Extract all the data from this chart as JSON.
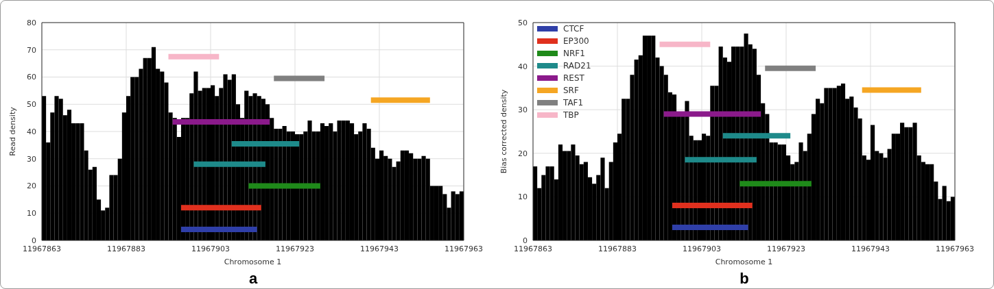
{
  "chart_data": [
    {
      "type": "histogram",
      "xlabel": "Chromosome 1",
      "ylabel": "Read density",
      "color": "#000000",
      "annotations": [
        "a"
      ],
      "bins": [
        11967863,
        11967864,
        11967865,
        11967866,
        11967867,
        11967868,
        11967869,
        11967870,
        11967871,
        11967872,
        11967873,
        11967874,
        11967875,
        11967876,
        11967877,
        11967878,
        11967879,
        11967880,
        11967881,
        11967882,
        11967883,
        11967884,
        11967885,
        11967886,
        11967887,
        11967888,
        11967889,
        11967890,
        11967891,
        11967892,
        11967893,
        11967894,
        11967895,
        11967896,
        11967897,
        11967898,
        11967899,
        11967900,
        11967901,
        11967902,
        11967903,
        11967904,
        11967905,
        11967906,
        11967907,
        11967908,
        11967909,
        11967910,
        11967911,
        11967912,
        11967913,
        11967914,
        11967915,
        11967916,
        11967917,
        11967918,
        11967919,
        11967920,
        11967921,
        11967922,
        11967923,
        11967924,
        11967925,
        11967926,
        11967927,
        11967928,
        11967929,
        11967930,
        11967931,
        11967932,
        11967933,
        11967934,
        11967935,
        11967936,
        11967937,
        11967938,
        11967939,
        11967940,
        11967941,
        11967942,
        11967943,
        11967944,
        11967945,
        11967946,
        11967947,
        11967948,
        11967949,
        11967950,
        11967951,
        11967952,
        11967953,
        11967954,
        11967955,
        11967956,
        11967957,
        11967958,
        11967959,
        11967960,
        11967961,
        11967962,
        11967963
      ],
      "values": [
        53,
        36,
        47,
        53,
        52,
        46,
        48,
        43,
        43,
        43,
        33,
        26,
        27,
        15,
        11,
        12,
        24,
        24,
        30,
        47,
        53,
        60,
        60,
        63,
        67,
        67,
        71,
        63,
        62,
        58,
        47,
        45,
        38,
        45,
        45,
        54,
        62,
        55,
        56,
        56,
        57,
        53,
        56,
        61,
        59,
        61,
        50,
        45,
        55,
        53,
        54,
        53,
        52,
        50,
        45,
        41,
        41,
        42,
        40,
        40,
        39,
        39,
        40,
        44,
        40,
        40,
        43,
        42,
        43,
        40,
        44,
        44,
        44,
        43,
        39,
        40,
        43,
        41,
        34,
        30,
        33,
        31,
        30,
        27,
        29,
        33,
        33,
        32,
        30,
        30,
        31,
        30,
        20,
        20,
        20,
        17,
        12,
        18,
        17,
        18
      ],
      "series": [
        {
          "type": "line",
          "color": "#2f3fa8",
          "x": [
            11967896,
            11967914
          ],
          "values": [
            4,
            4
          ]
        },
        {
          "type": "line",
          "color": "#e0301e",
          "x": [
            11967896,
            11967915
          ],
          "values": [
            12,
            12
          ]
        },
        {
          "type": "line",
          "color": "#1f8a1a",
          "x": [
            11967912,
            11967929
          ],
          "values": [
            20,
            20
          ]
        },
        {
          "type": "line",
          "color": "#1e8a8a",
          "x": [
            11967908,
            11967924
          ],
          "values": [
            35.5,
            35.5
          ]
        },
        {
          "type": "line",
          "color": "#1e8a8a",
          "x": [
            11967899,
            11967916
          ],
          "values": [
            28,
            28
          ]
        },
        {
          "type": "line",
          "color": "#8b1a8b",
          "x": [
            11967894,
            11967917
          ],
          "values": [
            43.5,
            43.5
          ]
        },
        {
          "type": "line",
          "color": "#f5a623",
          "x": [
            11967941,
            11967955
          ],
          "values": [
            51.5,
            51.5
          ]
        },
        {
          "type": "line",
          "color": "#808080",
          "x": [
            11967918,
            11967930
          ],
          "values": [
            59.5,
            59.5
          ]
        },
        {
          "type": "line",
          "color": "#f7b6c8",
          "x": [
            11967893,
            11967905
          ],
          "values": [
            67.5,
            67.5
          ]
        }
      ],
      "xlim": [
        11967863,
        11967963
      ],
      "xticks": [
        11967863,
        11967883,
        11967903,
        11967923,
        11967943,
        11967963
      ],
      "ylim": [
        0,
        80
      ],
      "yticks": [
        0,
        10,
        20,
        30,
        40,
        50,
        60,
        70,
        80
      ],
      "grid": true
    },
    {
      "type": "histogram",
      "xlabel": "Chromosome 1",
      "ylabel": "Bias corrected density",
      "color": "#000000",
      "annotations": [
        "b"
      ],
      "legend": "top left",
      "bins": [
        11967863,
        11967864,
        11967865,
        11967866,
        11967867,
        11967868,
        11967869,
        11967870,
        11967871,
        11967872,
        11967873,
        11967874,
        11967875,
        11967876,
        11967877,
        11967878,
        11967879,
        11967880,
        11967881,
        11967882,
        11967883,
        11967884,
        11967885,
        11967886,
        11967887,
        11967888,
        11967889,
        11967890,
        11967891,
        11967892,
        11967893,
        11967894,
        11967895,
        11967896,
        11967897,
        11967898,
        11967899,
        11967900,
        11967901,
        11967902,
        11967903,
        11967904,
        11967905,
        11967906,
        11967907,
        11967908,
        11967909,
        11967910,
        11967911,
        11967912,
        11967913,
        11967914,
        11967915,
        11967916,
        11967917,
        11967918,
        11967919,
        11967920,
        11967921,
        11967922,
        11967923,
        11967924,
        11967925,
        11967926,
        11967927,
        11967928,
        11967929,
        11967930,
        11967931,
        11967932,
        11967933,
        11967934,
        11967935,
        11967936,
        11967937,
        11967938,
        11967939,
        11967940,
        11967941,
        11967942,
        11967943,
        11967944,
        11967945,
        11967946,
        11967947,
        11967948,
        11967949,
        11967950,
        11967951,
        11967952,
        11967953,
        11967954,
        11967955,
        11967956,
        11967957,
        11967958,
        11967959,
        11967960,
        11967961,
        11967962,
        11967963
      ],
      "values": [
        17,
        12,
        15,
        17,
        17,
        14,
        22,
        20.5,
        20.5,
        22,
        19.5,
        17.5,
        18,
        14.5,
        13,
        15,
        19,
        12,
        18,
        22.5,
        24.5,
        32.5,
        32.5,
        38,
        41.5,
        42.5,
        47,
        47,
        47,
        42,
        40,
        38,
        34,
        33.5,
        29,
        29,
        32,
        24,
        23,
        23,
        24.5,
        24,
        35.5,
        35.5,
        44.5,
        42,
        41,
        44.5,
        44.5,
        44.5,
        47.5,
        45,
        44,
        38,
        31.5,
        29,
        22.5,
        22.5,
        22,
        22,
        19.5,
        17.5,
        18,
        22.5,
        20.5,
        24.5,
        29,
        32.5,
        31.5,
        35,
        35,
        35,
        35.5,
        36,
        32.5,
        33,
        30.5,
        28,
        19.5,
        18.5,
        26.5,
        20.5,
        20,
        19,
        21,
        24.5,
        24.5,
        27,
        26,
        26,
        27,
        19.5,
        18,
        17.5,
        17.5,
        13.5,
        9.5,
        12.5,
        9,
        10
      ],
      "series": [
        {
          "type": "line",
          "name": "CTCF",
          "color": "#2f3fa8",
          "x": [
            11967896,
            11967914
          ],
          "values": [
            3,
            3
          ]
        },
        {
          "type": "line",
          "name": "EP300",
          "color": "#e0301e",
          "x": [
            11967896,
            11967915
          ],
          "values": [
            8,
            8
          ]
        },
        {
          "type": "line",
          "name": "NRF1",
          "color": "#1f8a1a",
          "x": [
            11967912,
            11967929
          ],
          "values": [
            13,
            13
          ]
        },
        {
          "type": "line",
          "name": "RAD21",
          "color": "#1e8a8a",
          "x": [
            11967908,
            11967924
          ],
          "values": [
            24,
            24
          ]
        },
        {
          "type": "line",
          "color": "#1e8a8a",
          "x": [
            11967899,
            11967916
          ],
          "values": [
            18.5,
            18.5
          ]
        },
        {
          "type": "line",
          "name": "REST",
          "color": "#8b1a8b",
          "x": [
            11967894,
            11967917
          ],
          "values": [
            29,
            29
          ]
        },
        {
          "type": "line",
          "name": "SRF",
          "color": "#f5a623",
          "x": [
            11967941,
            11967955
          ],
          "values": [
            34.5,
            34.5
          ]
        },
        {
          "type": "line",
          "name": "TAF1",
          "color": "#808080",
          "x": [
            11967918,
            11967930
          ],
          "values": [
            39.5,
            39.5
          ]
        },
        {
          "type": "line",
          "name": "TBP",
          "color": "#f7b6c8",
          "x": [
            11967893,
            11967905
          ],
          "values": [
            45,
            45
          ]
        }
      ],
      "xlim": [
        11967863,
        11967963
      ],
      "xticks": [
        11967863,
        11967883,
        11967903,
        11967923,
        11967943,
        11967963
      ],
      "ylim": [
        0,
        50
      ],
      "yticks": [
        0,
        10,
        20,
        30,
        40,
        50
      ],
      "grid": true
    }
  ]
}
